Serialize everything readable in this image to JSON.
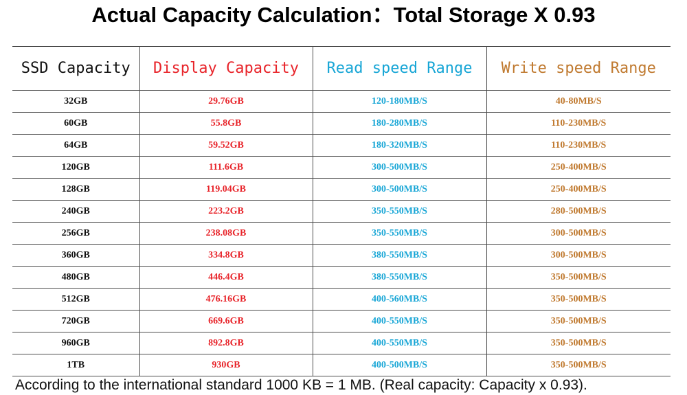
{
  "title": "Actual Capacity Calculation：Total Storage X 0.93",
  "colors": {
    "ssd": "#111111",
    "display": "#e8242a",
    "read": "#18a6d6",
    "write": "#c07a30"
  },
  "table": {
    "headers": [
      "SSD Capacity",
      "Display Capacity",
      "Read speed Range",
      "Write speed Range"
    ],
    "rows": [
      [
        "32GB",
        "29.76GB",
        "120-180MB/S",
        "40-80MB/S"
      ],
      [
        "60GB",
        "55.8GB",
        "180-280MB/S",
        "110-230MB/S"
      ],
      [
        "64GB",
        "59.52GB",
        "180-320MB/S",
        "110-230MB/S"
      ],
      [
        "120GB",
        "111.6GB",
        "300-500MB/S",
        "250-400MB/S"
      ],
      [
        "128GB",
        "119.04GB",
        "300-500MB/S",
        "250-400MB/S"
      ],
      [
        "240GB",
        "223.2GB",
        "350-550MB/S",
        "280-500MB/S"
      ],
      [
        "256GB",
        "238.08GB",
        "350-550MB/S",
        "300-500MB/S"
      ],
      [
        "360GB",
        "334.8GB",
        "380-550MB/S",
        "300-500MB/S"
      ],
      [
        "480GB",
        "446.4GB",
        "380-550MB/S",
        "350-500MB/S"
      ],
      [
        "512GB",
        "476.16GB",
        "400-560MB/S",
        "350-500MB/S"
      ],
      [
        "720GB",
        "669.6GB",
        "400-550MB/S",
        "350-500MB/S"
      ],
      [
        "960GB",
        "892.8GB",
        "400-550MB/S",
        "350-500MB/S"
      ],
      [
        "1TB",
        "930GB",
        "400-500MB/S",
        "350-500MB/S"
      ]
    ]
  },
  "footer": "According to the international standard 1000 KB = 1 MB. (Real capacity: Capacity x 0.93)."
}
